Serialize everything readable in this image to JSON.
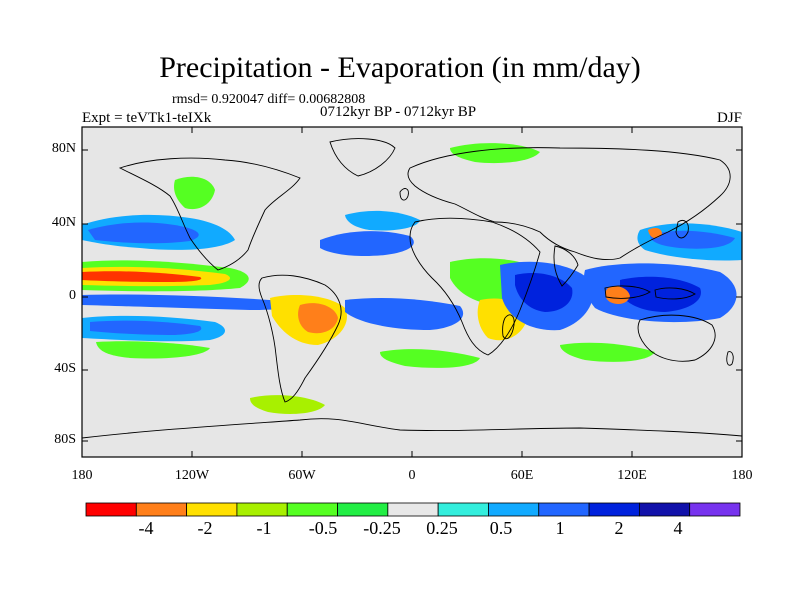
{
  "title": "Precipitation - Evaporation (in mm/day)",
  "stats": "rmsd= 0.920047 diff= 0.00682808",
  "experiment": "Expt = teVTk1-teIXk",
  "period": "0712kyr BP - 0712kyr BP",
  "season": "DJF",
  "lat_labels": [
    "80N",
    "40N",
    "0",
    "40S",
    "80S"
  ],
  "lon_labels": [
    "180",
    "120W",
    "60W",
    "0",
    "60E",
    "120E",
    "180"
  ],
  "colorbar": {
    "labels": [
      "-4",
      "-2",
      "-1",
      "-0.5",
      "-0.25",
      "0.25",
      "0.5",
      "1",
      "2",
      "4"
    ],
    "colors": [
      "#ff0000",
      "#ff7f1a",
      "#ffe000",
      "#a8f000",
      "#55ff22",
      "#22ee44",
      "#e8e8e8",
      "#33eedd",
      "#11aaff",
      "#2266ff",
      "#0022dd",
      "#1111aa",
      "#7733ee"
    ]
  },
  "map_colors": {
    "background": "#e6e6e6",
    "coast": "#000000"
  }
}
